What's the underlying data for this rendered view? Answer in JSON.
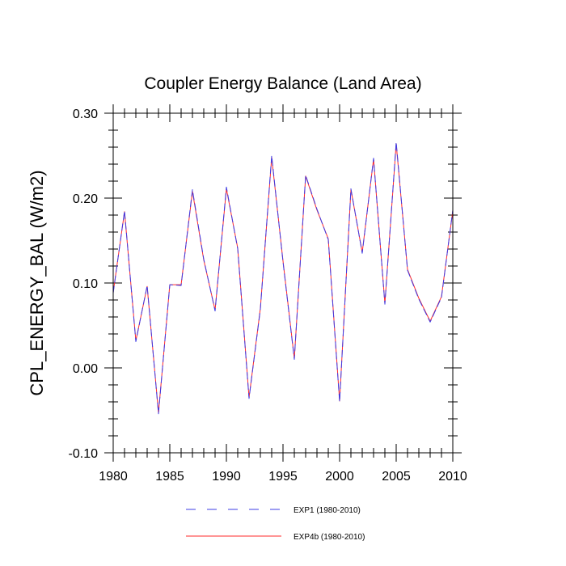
{
  "chart_data": {
    "type": "line",
    "title": "Coupler Energy Balance (Land Area)",
    "xlabel": "",
    "ylabel": "CPL_ENERGY_BAL  (W/m2)",
    "xlim": [
      1980,
      2010
    ],
    "ylim": [
      -0.1,
      0.3
    ],
    "x_ticks": [
      1980,
      1985,
      1990,
      1995,
      2000,
      2005,
      2010
    ],
    "y_ticks": [
      -0.1,
      0.0,
      0.1,
      0.2,
      0.3
    ],
    "x_tick_labels": [
      "1980",
      "1985",
      "1990",
      "1995",
      "2000",
      "2005",
      "2010"
    ],
    "y_tick_labels": [
      "-0.10",
      "0.00",
      "0.10",
      "0.20",
      "0.30"
    ],
    "grid": false,
    "legend_position": "bottom",
    "x": [
      1980,
      1981,
      1982,
      1983,
      1984,
      1985,
      1986,
      1987,
      1988,
      1989,
      1990,
      1991,
      1992,
      1993,
      1994,
      1995,
      1996,
      1997,
      1998,
      1999,
      2000,
      2001,
      2002,
      2003,
      2004,
      2005,
      2006,
      2007,
      2008,
      2009,
      2010
    ],
    "series": [
      {
        "name": "EXP1 (1980-2010)",
        "color": "#3c3ce6",
        "style": "dashed",
        "values": [
          0.088,
          0.185,
          0.031,
          0.097,
          -0.054,
          0.098,
          0.097,
          0.21,
          0.128,
          0.067,
          0.213,
          0.14,
          -0.036,
          0.069,
          0.25,
          0.125,
          0.01,
          0.227,
          0.187,
          0.151,
          -0.04,
          0.211,
          0.135,
          0.247,
          0.075,
          0.266,
          0.115,
          0.081,
          0.054,
          0.083,
          0.186
        ]
      },
      {
        "name": "EXP4b (1980-2010)",
        "color": "#ff2a2a",
        "style": "solid",
        "values": [
          0.089,
          0.184,
          0.032,
          0.096,
          -0.053,
          0.098,
          0.098,
          0.208,
          0.127,
          0.068,
          0.211,
          0.141,
          -0.035,
          0.07,
          0.248,
          0.126,
          0.011,
          0.226,
          0.186,
          0.152,
          -0.039,
          0.21,
          0.136,
          0.246,
          0.076,
          0.264,
          0.116,
          0.082,
          0.055,
          0.084,
          0.185
        ]
      }
    ]
  }
}
